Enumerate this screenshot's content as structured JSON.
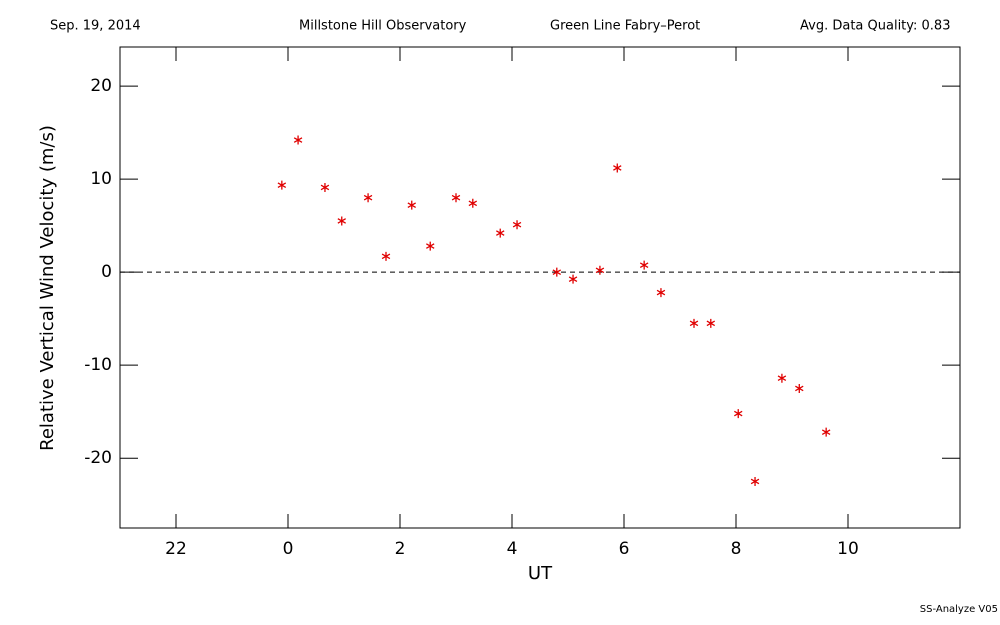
{
  "chart_data": {
    "type": "scatter",
    "date": "Sep. 19, 2014",
    "observatory": "Millstone Hill Observatory",
    "instrument": "Green Line Fabry–Perot",
    "quality": "Avg. Data Quality: 0.83",
    "footer": "SS-Analyze V05",
    "x_label": "UT",
    "y_label": "Relative Vertical Wind Velocity (m/s)",
    "xlim": [
      -3,
      12
    ],
    "ylim": [
      -27.5,
      24.2
    ],
    "xticks": [
      {
        "value": -2,
        "label": "22"
      },
      0,
      2,
      4,
      6,
      8,
      10
    ],
    "yticks": [
      -20,
      -10,
      0,
      10,
      20
    ],
    "hline": 0,
    "color": "#e00000",
    "x": [
      -0.11,
      0.18,
      0.66,
      0.96,
      1.43,
      1.75,
      2.21,
      2.54,
      3.0,
      3.3,
      3.79,
      4.09,
      4.8,
      5.09,
      5.57,
      5.88,
      6.36,
      6.66,
      7.25,
      7.55,
      8.04,
      8.34,
      8.82,
      9.13,
      9.61
    ],
    "values": [
      9.35,
      14.2,
      9.1,
      5.5,
      8.0,
      1.7,
      7.2,
      2.8,
      8.0,
      7.4,
      4.2,
      5.1,
      0,
      -0.75,
      0.2,
      11.2,
      0.75,
      -2.2,
      -5.5,
      -5.5,
      -15.2,
      -22.5,
      -11.4,
      -12.5,
      -17.2
    ]
  }
}
